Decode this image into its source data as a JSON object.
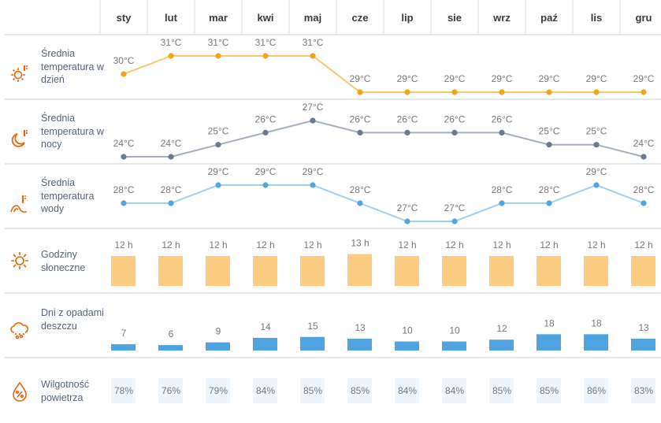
{
  "months": [
    "sty",
    "lut",
    "mar",
    "kwi",
    "maj",
    "cze",
    "lip",
    "sie",
    "wrz",
    "paź",
    "lis",
    "gru"
  ],
  "rows": {
    "day_temp": {
      "label": "Średnia temperatura w dzień",
      "icon": "sun-thermometer-icon",
      "values": [
        30,
        31,
        31,
        31,
        31,
        29,
        29,
        29,
        29,
        29,
        29,
        29
      ],
      "unit": "°C",
      "color": "#f5a31a",
      "line_color": "#fbc56e"
    },
    "night_temp": {
      "label": "Średnia temperatura w nocy",
      "icon": "moon-thermometer-icon",
      "values": [
        24,
        24,
        25,
        26,
        27,
        26,
        26,
        26,
        26,
        25,
        25,
        24
      ],
      "unit": "°C",
      "color": "#6b7a8f",
      "line_color": "#a3afbd"
    },
    "water_temp": {
      "label": "Średnia temperatura wody",
      "icon": "wave-thermometer-icon",
      "values": [
        28,
        28,
        29,
        29,
        29,
        28,
        27,
        27,
        28,
        28,
        29,
        28
      ],
      "unit": "°C",
      "color": "#4ea6e6",
      "line_color": "#9fd0f2"
    },
    "sun_hours": {
      "label": "Godziny słoneczne",
      "icon": "sun-icon",
      "values": [
        12,
        12,
        12,
        12,
        12,
        13,
        12,
        12,
        12,
        12,
        12,
        12
      ],
      "unit": " h",
      "color": "#fbcb82"
    },
    "rain_days": {
      "label": "Dni z opadami deszczu",
      "icon": "rain-cloud-icon",
      "values": [
        7,
        6,
        9,
        14,
        15,
        13,
        10,
        10,
        12,
        18,
        18,
        13
      ],
      "unit": "",
      "color": "#4fa3e0"
    },
    "humidity": {
      "label": "Wilgotność powietrza",
      "icon": "humidity-drop-icon",
      "values": [
        78,
        76,
        79,
        84,
        85,
        85,
        84,
        84,
        85,
        85,
        86,
        83
      ],
      "unit": "%",
      "color": "#eef6fd"
    }
  },
  "icon_color": "#e8650a"
}
